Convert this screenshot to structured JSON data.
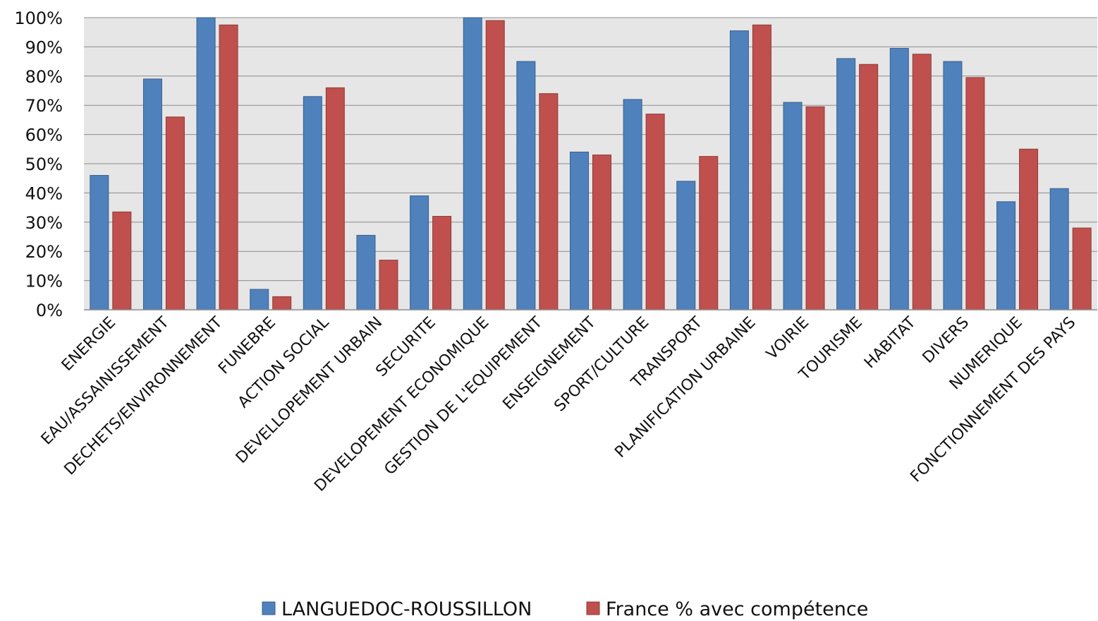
{
  "chart_data": {
    "type": "bar",
    "title": "",
    "xlabel": "",
    "ylabel": "",
    "ylim": [
      0,
      1
    ],
    "y_ticks": [
      "0%",
      "10%",
      "20%",
      "30%",
      "40%",
      "50%",
      "60%",
      "70%",
      "80%",
      "90%",
      "100%"
    ],
    "grid": true,
    "legend_position": "bottom",
    "categories": [
      "ENERGIE",
      "EAU/ASSAINISSEMENT",
      "DECHETS/ENVIRONNEMENT",
      "FUNEBRE",
      "ACTION SOCIAL",
      "DEVELLOPEMENT URBAIN",
      "SECURITE",
      "DEVELOPEMENT ECONOMIQUE",
      "GESTION DE L'EQUIPEMENT",
      "ENSEIGNEMENT",
      "SPORT/CULTURE",
      "TRANSPORT",
      "PLANIFICATION URBAINE",
      "VOIRIE",
      "TOURISME",
      "HABITAT",
      "DIVERS",
      "NUMERIQUE",
      "FONCTIONNEMENT DES PAYS"
    ],
    "series": [
      {
        "name": "LANGUEDOC-ROUSSILLON",
        "color": "#4f81bd",
        "values": [
          0.46,
          0.79,
          1.0,
          0.07,
          0.73,
          0.255,
          0.39,
          1.0,
          0.85,
          0.54,
          0.72,
          0.44,
          0.955,
          0.71,
          0.86,
          0.895,
          0.85,
          0.37,
          0.415
        ]
      },
      {
        "name": "France % avec compétence",
        "color": "#c0504d",
        "values": [
          0.335,
          0.66,
          0.975,
          0.045,
          0.76,
          0.17,
          0.32,
          0.99,
          0.74,
          0.53,
          0.67,
          0.525,
          0.975,
          0.695,
          0.84,
          0.875,
          0.795,
          0.55,
          0.28
        ]
      }
    ]
  }
}
